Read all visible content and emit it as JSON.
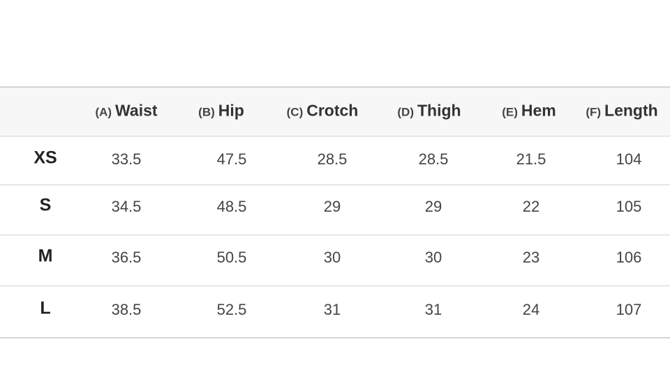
{
  "table": {
    "header": [
      {
        "letter": "(A)",
        "name": "Waist"
      },
      {
        "letter": "(B)",
        "name": "Hip"
      },
      {
        "letter": "(C)",
        "name": "Crotch"
      },
      {
        "letter": "(D)",
        "name": "Thigh"
      },
      {
        "letter": "(E)",
        "name": "Hem"
      },
      {
        "letter": "(F)",
        "name": "Length"
      }
    ],
    "rows": [
      {
        "size": "XS",
        "values": [
          33.5,
          47.5,
          28.5,
          28.5,
          21.5,
          104
        ]
      },
      {
        "size": "S",
        "values": [
          34.5,
          48.5,
          29,
          29,
          22,
          105
        ]
      },
      {
        "size": "M",
        "values": [
          36.5,
          50.5,
          30,
          30,
          23,
          106
        ]
      },
      {
        "size": "L",
        "values": [
          38.5,
          52.5,
          31,
          31,
          24,
          107
        ]
      }
    ]
  }
}
